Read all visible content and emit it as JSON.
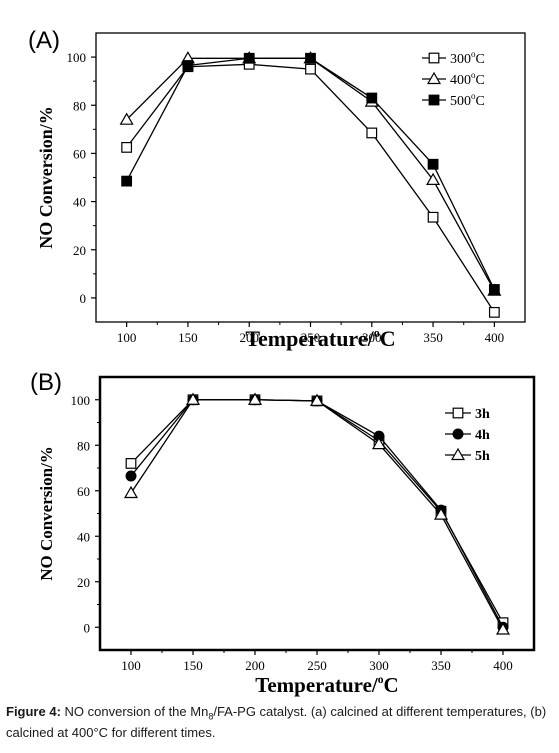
{
  "chart_data": [
    {
      "type": "line",
      "panel_label": "(A)",
      "x": [
        100,
        150,
        200,
        250,
        300,
        350,
        400
      ],
      "xlim": [
        75,
        425
      ],
      "ylim": [
        -10,
        110
      ],
      "xticks": [
        100,
        150,
        200,
        250,
        300,
        350,
        400
      ],
      "yticks": [
        0,
        20,
        40,
        60,
        80,
        100
      ],
      "xlabel": "Temperature/",
      "xlabel_unit": "C",
      "ylabel": "NO Conversion/%",
      "legend_position": "top-right",
      "series": [
        {
          "name": "300",
          "unit": "C",
          "marker": "open-square",
          "values": [
            62.5,
            96.0,
            97.0,
            95.0,
            68.5,
            33.5,
            -6.0
          ]
        },
        {
          "name": "400",
          "unit": "C",
          "marker": "open-triangle",
          "values": [
            74.0,
            99.5,
            99.5,
            99.5,
            81.5,
            49.0,
            3.0
          ]
        },
        {
          "name": "500",
          "unit": "C",
          "marker": "filled-square",
          "values": [
            48.5,
            96.5,
            99.5,
            99.5,
            83.0,
            55.5,
            3.5
          ]
        }
      ]
    },
    {
      "type": "line",
      "panel_label": "(B)",
      "x": [
        100,
        150,
        200,
        250,
        300,
        350,
        400
      ],
      "xlim": [
        75,
        425
      ],
      "ylim": [
        -10,
        110
      ],
      "xticks": [
        100,
        150,
        200,
        250,
        300,
        350,
        400
      ],
      "yticks": [
        0,
        20,
        40,
        60,
        80,
        100
      ],
      "xlabel": "Temperature/",
      "xlabel_unit": "C",
      "ylabel": "NO Conversion/%",
      "legend_position": "top-right",
      "series": [
        {
          "name": "3h",
          "marker": "open-square",
          "values": [
            72.0,
            100.0,
            100.0,
            99.5,
            82.0,
            51.0,
            2.0
          ]
        },
        {
          "name": "4h",
          "marker": "filled-circle",
          "values": [
            66.5,
            100.0,
            100.0,
            99.5,
            84.0,
            51.5,
            0.0
          ]
        },
        {
          "name": "5h",
          "marker": "open-triangle",
          "values": [
            59.0,
            100.0,
            100.0,
            99.5,
            80.5,
            49.5,
            -1.0
          ]
        }
      ]
    }
  ],
  "caption": {
    "label": "Figure 4:",
    "text_part1": " NO conversion of the Mn",
    "subscript": "8",
    "text_part2": "/FA-PG catalyst. (a) calcined at different temperatures, (b) calcined at 400°C for different times."
  }
}
